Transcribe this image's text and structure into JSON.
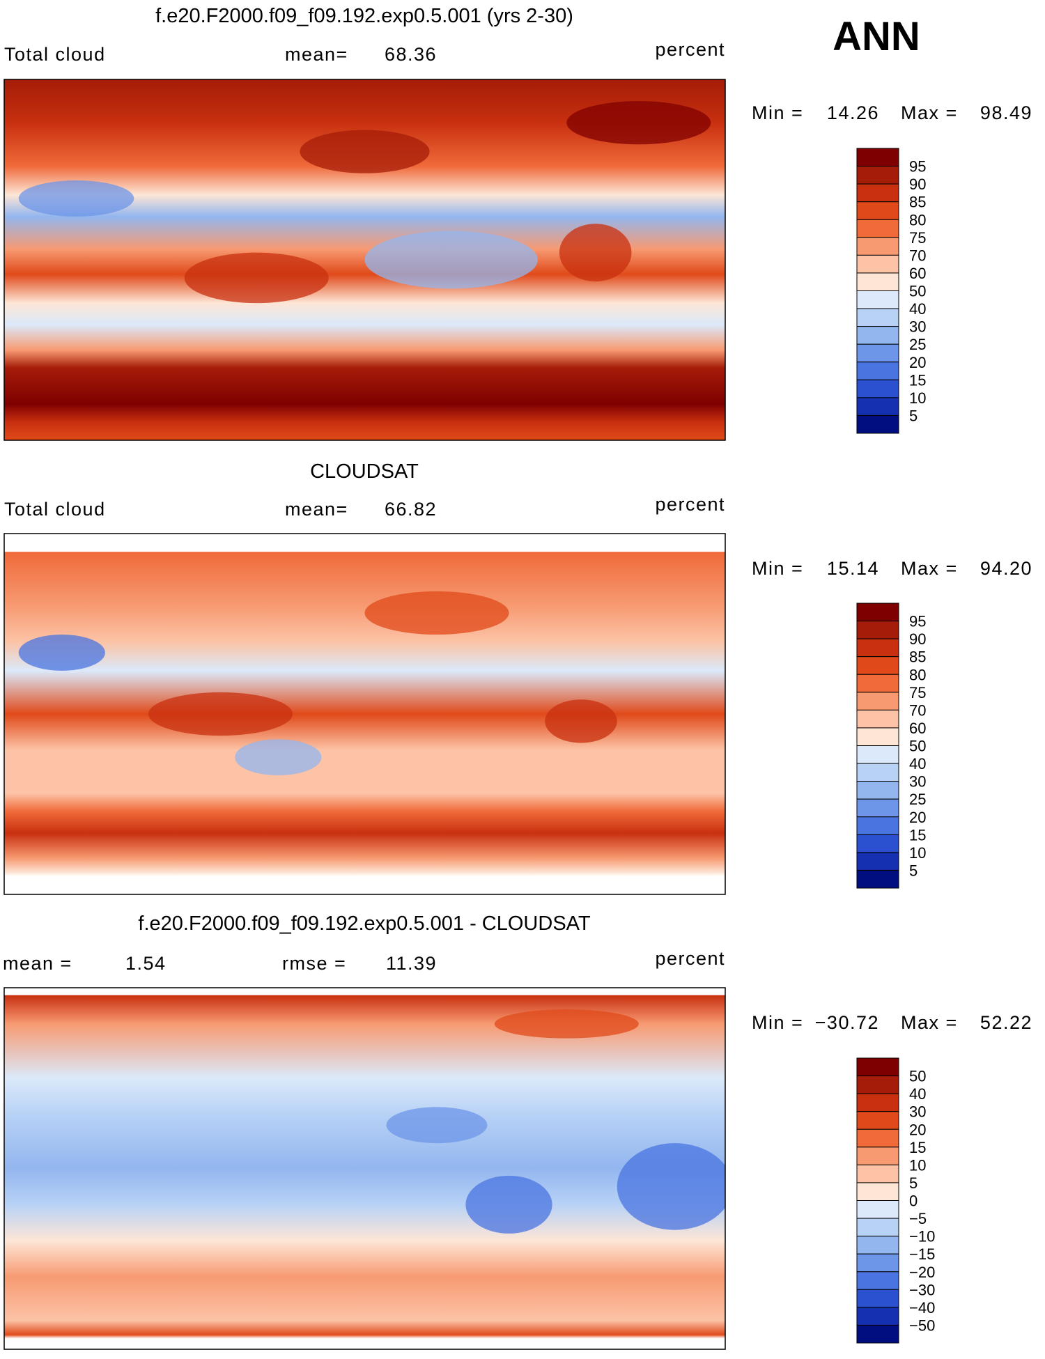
{
  "header": {
    "season": "ANN"
  },
  "panels": [
    {
      "title": "f.e20.F2000.f09_f09.192.exp0.5.001 (yrs 2-30)",
      "stats": [
        "Total cloud",
        "mean=",
        "68.36"
      ],
      "units": "percent",
      "range": [
        "Min =",
        "14.26",
        "Max =",
        "98.49"
      ],
      "colorbar": {
        "labels": [
          "95",
          "90",
          "85",
          "80",
          "75",
          "70",
          "60",
          "50",
          "40",
          "30",
          "25",
          "20",
          "15",
          "10",
          "5"
        ]
      }
    },
    {
      "title": "CLOUDSAT",
      "stats": [
        "Total cloud",
        "mean=",
        "66.82"
      ],
      "units": "percent",
      "range": [
        "Min =",
        "15.14",
        "Max =",
        "94.20"
      ],
      "colorbar": {
        "labels": [
          "95",
          "90",
          "85",
          "80",
          "75",
          "70",
          "60",
          "50",
          "40",
          "30",
          "25",
          "20",
          "15",
          "10",
          "5"
        ]
      }
    },
    {
      "title": "f.e20.F2000.f09_f09.192.exp0.5.001 - CLOUDSAT",
      "stats": [
        "mean =",
        "1.54",
        "rmse =",
        "11.39"
      ],
      "units": "percent",
      "range": [
        "Min =",
        "−30.72",
        "Max =",
        "52.22"
      ],
      "colorbar": {
        "labels": [
          "50",
          "40",
          "30",
          "20",
          "15",
          "10",
          "5",
          "0",
          "−5",
          "−10",
          "−15",
          "−20",
          "−30",
          "−40",
          "−50"
        ]
      }
    }
  ]
}
